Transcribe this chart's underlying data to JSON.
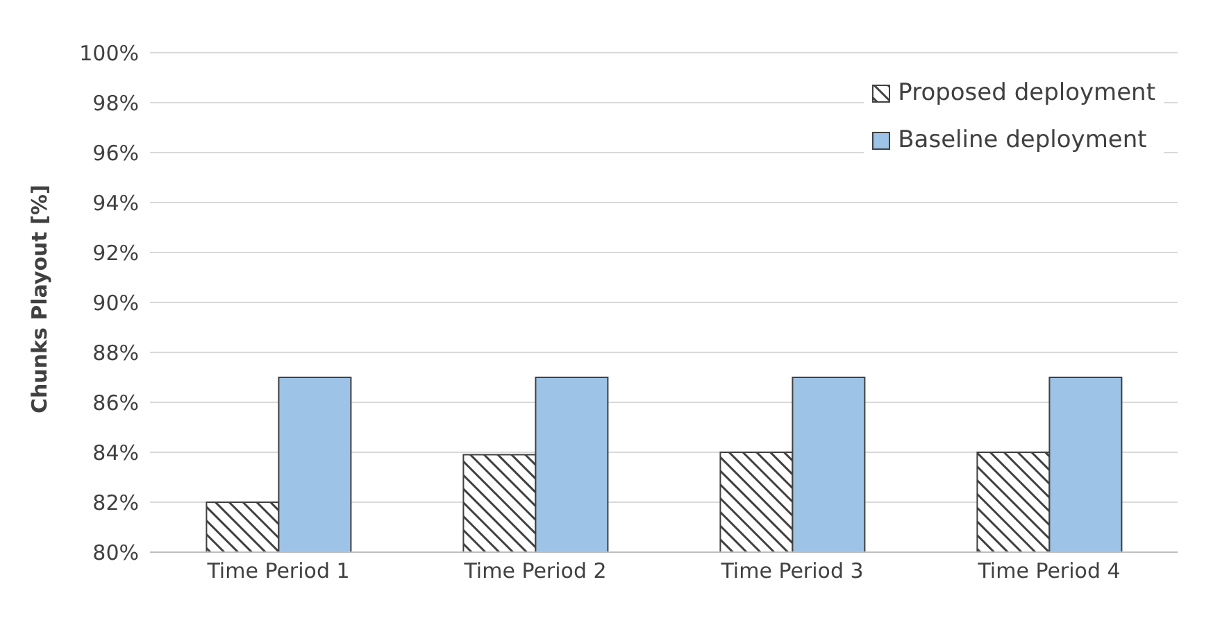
{
  "chart_data": {
    "type": "bar",
    "ylabel": "Chunks Playout [%]",
    "categories": [
      "Time Period 1",
      "Time Period 2",
      "Time Period 3",
      "Time Period 4"
    ],
    "series": [
      {
        "name": "Proposed deployment",
        "color": "#404040",
        "values": [
          82,
          83.9,
          84,
          84
        ]
      },
      {
        "name": "Baseline deployment",
        "color": "#9dc3e6",
        "values": [
          87,
          87,
          87,
          87
        ]
      }
    ],
    "ylim": [
      80,
      100
    ],
    "yticks": [
      {
        "value": 80,
        "label": "80%"
      },
      {
        "value": 82,
        "label": "82%"
      },
      {
        "value": 84,
        "label": "84%"
      },
      {
        "value": 86,
        "label": "86%"
      },
      {
        "value": 88,
        "label": "88%"
      },
      {
        "value": 90,
        "label": "90%"
      },
      {
        "value": 92,
        "label": "92%"
      },
      {
        "value": 94,
        "label": "94%"
      },
      {
        "value": 96,
        "label": "96%"
      },
      {
        "value": 98,
        "label": "98%"
      },
      {
        "value": 100,
        "label": "100%"
      }
    ],
    "grid": "y",
    "legend": "top right"
  }
}
